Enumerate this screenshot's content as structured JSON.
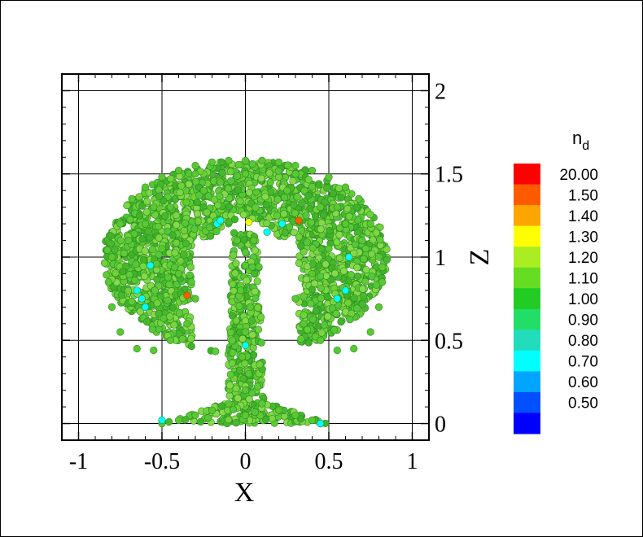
{
  "chart_data": {
    "type": "scatter",
    "title": "",
    "xlabel": "X",
    "ylabel": "Z",
    "xlim": [
      -1.1,
      1.1
    ],
    "ylim": [
      -0.1,
      2.1
    ],
    "x_ticks": [
      {
        "value": -1,
        "label": "-1"
      },
      {
        "value": -0.5,
        "label": "-0.5"
      },
      {
        "value": 0,
        "label": "0"
      },
      {
        "value": 0.5,
        "label": "0.5"
      },
      {
        "value": 1,
        "label": "1"
      }
    ],
    "y_ticks": [
      {
        "value": 0,
        "label": "0"
      },
      {
        "value": 0.5,
        "label": "0.5"
      },
      {
        "value": 1,
        "label": "1"
      },
      {
        "value": 1.5,
        "label": "1.5"
      },
      {
        "value": 2,
        "label": "2"
      }
    ],
    "grid": true,
    "y_axis_side": "right",
    "colorbar": {
      "title": "n",
      "title_subscript": "d",
      "placement": "right",
      "levels": [
        {
          "label": "20.00",
          "color": "#ff0000"
        },
        {
          "label": "1.50",
          "color": "#ff5a00"
        },
        {
          "label": "1.40",
          "color": "#ffa500"
        },
        {
          "label": "1.30",
          "color": "#ffff00"
        },
        {
          "label": "1.20",
          "color": "#aaee22"
        },
        {
          "label": "1.10",
          "color": "#66dd22"
        },
        {
          "label": "1.00",
          "color": "#22cc22"
        },
        {
          "label": "0.90",
          "color": "#22dd66"
        },
        {
          "label": "0.80",
          "color": "#22ddbb"
        },
        {
          "label": "0.70",
          "color": "#00ffff"
        },
        {
          "label": "0.60",
          "color": "#00a5ff"
        },
        {
          "label": "0.50",
          "color": "#0050ff"
        },
        {
          "label": "",
          "color": "#0000ff"
        }
      ]
    },
    "series": [
      {
        "point_color": "#5ac832",
        "points_x": [
          -0.68,
          -0.6,
          -0.5,
          -0.4,
          -0.3,
          -0.2,
          -0.1,
          0.0,
          0.1,
          0.2,
          0.3,
          0.4,
          0.5,
          0.6,
          0.68,
          -0.75,
          -0.8,
          -0.82,
          -0.8,
          -0.75,
          -0.65,
          -0.55,
          -0.45,
          -0.35,
          -0.3,
          -0.5,
          -0.6,
          -0.7,
          -0.4,
          -0.45,
          0.75,
          0.8,
          0.82,
          0.8,
          0.75,
          0.65,
          0.55,
          0.45,
          0.35,
          0.3,
          0.5,
          0.6,
          0.7,
          0.4,
          0.45,
          -0.05,
          0.05,
          0.0,
          -0.03,
          0.03,
          0.0,
          -0.02,
          0.02,
          0.0,
          -0.1,
          0.1,
          -0.2,
          0.2,
          -0.3,
          0.3,
          -0.4,
          0.4,
          -0.5,
          0.45,
          0.0,
          -0.15,
          0.15,
          -0.25,
          0.25,
          -0.55,
          0.55,
          0.0,
          -0.3,
          0.3
        ],
        "points_z": [
          1.35,
          1.42,
          1.48,
          1.52,
          1.55,
          1.57,
          1.58,
          1.58,
          1.58,
          1.57,
          1.55,
          1.52,
          1.48,
          1.42,
          1.35,
          1.2,
          1.0,
          0.85,
          0.7,
          0.55,
          0.45,
          0.44,
          0.5,
          0.6,
          0.75,
          1.05,
          1.2,
          1.1,
          0.9,
          1.3,
          1.2,
          1.0,
          0.85,
          0.7,
          0.55,
          0.45,
          0.44,
          0.5,
          0.6,
          0.75,
          1.05,
          1.2,
          1.1,
          0.9,
          1.3,
          1.1,
          1.1,
          0.95,
          0.8,
          0.7,
          0.55,
          0.4,
          0.3,
          0.2,
          0.12,
          0.12,
          0.08,
          0.08,
          0.05,
          0.05,
          0.02,
          0.02,
          0.0,
          0.0,
          0.05,
          1.45,
          1.45,
          1.4,
          1.4,
          1.3,
          1.3,
          1.5,
          1.5,
          1.5
        ]
      },
      {
        "point_color": "#00ffff",
        "points_x": [
          -0.17,
          -0.15,
          0.13,
          0.22,
          0.62,
          0.6,
          -0.62,
          -0.6,
          -0.5,
          0.0,
          0.55,
          0.45,
          -0.57,
          -0.65
        ],
        "points_z": [
          1.2,
          1.22,
          1.15,
          1.2,
          1.0,
          0.8,
          0.75,
          0.7,
          0.02,
          0.47,
          0.75,
          0.0,
          0.95,
          0.8
        ]
      },
      {
        "point_color": "#ff5a00",
        "points_x": [
          -0.35,
          0.32
        ],
        "points_z": [
          0.77,
          1.22
        ]
      },
      {
        "point_color": "#ffff00",
        "points_x": [
          0.02
        ],
        "points_z": [
          1.21
        ]
      }
    ]
  }
}
